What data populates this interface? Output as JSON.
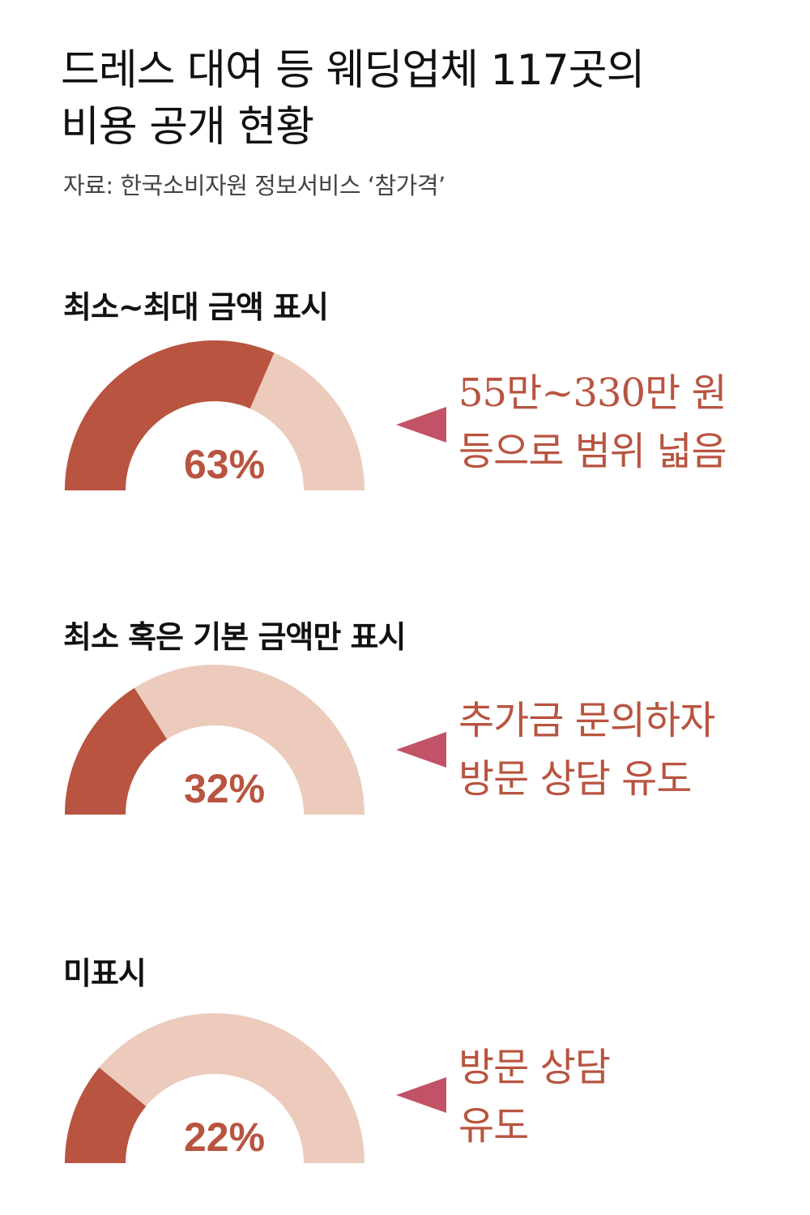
{
  "title": {
    "line1": "드레스 대여 등 웨딩업체 117곳의",
    "line2": "비용 공개 현황"
  },
  "source": "자료: 한국소비자원 정보서비스 ‘참가격’",
  "colors": {
    "filled": "#b85440",
    "remaining": "#eccbbd",
    "percent_text": "#b85440",
    "pointer": "#c25266",
    "note_text": "#b85440"
  },
  "icons": {
    "pointer": "left-pointing-triangle"
  },
  "chart_data": [
    {
      "type": "pie",
      "style": "half-donut gauge",
      "title": "최소~최대 금액 표시",
      "value": 63,
      "max": 100,
      "value_label": "63%",
      "annotation": [
        "55만~330만 원",
        "등으로 범위 넓음"
      ]
    },
    {
      "type": "pie",
      "style": "half-donut gauge",
      "title": "최소 혹은 기본 금액만 표시",
      "value": 32,
      "max": 100,
      "value_label": "32%",
      "annotation": [
        "추가금 문의하자",
        "방문 상담 유도"
      ]
    },
    {
      "type": "pie",
      "style": "half-donut gauge",
      "title": "미표시",
      "value": 22,
      "max": 100,
      "value_label": "22%",
      "annotation": [
        "방문 상담",
        "유도"
      ]
    }
  ]
}
